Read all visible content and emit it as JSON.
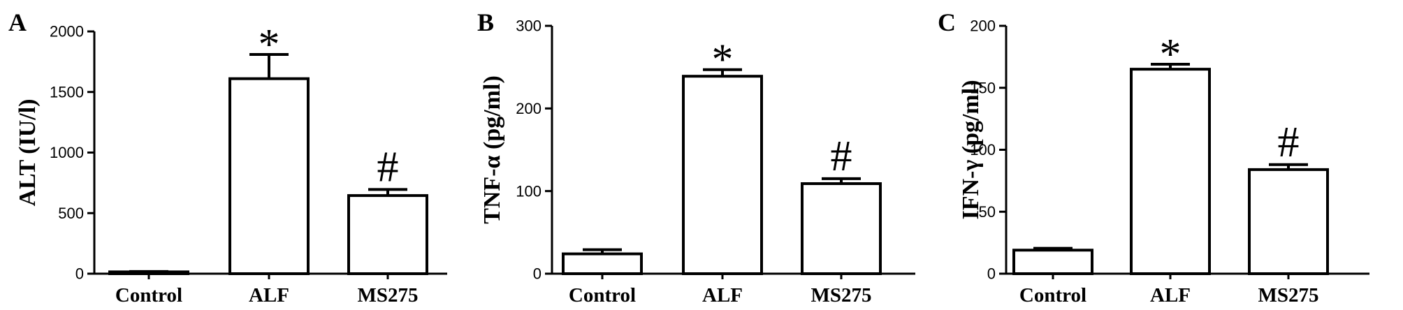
{
  "chart_data": [
    {
      "type": "bar",
      "panel": "A",
      "ylabel": "ALT (IU/l)",
      "ylim": [
        0,
        2000
      ],
      "yticks": [
        "0",
        "500",
        "1000",
        "1500",
        "2000"
      ],
      "categories": [
        "Control",
        "ALF",
        "MS275"
      ],
      "values": [
        15,
        1610,
        645
      ],
      "errors": [
        3,
        200,
        50
      ],
      "annotations": [
        "",
        "*",
        "#"
      ],
      "grid": false
    },
    {
      "type": "bar",
      "panel": "B",
      "ylabel": "TNF-α (pg/ml)",
      "ylim": [
        0,
        300
      ],
      "yticks": [
        "0",
        "100",
        "200",
        "300"
      ],
      "categories": [
        "Control",
        "ALF",
        "MS275"
      ],
      "values": [
        24,
        239,
        109
      ],
      "errors": [
        5,
        8,
        6
      ],
      "annotations": [
        "",
        "*",
        "#"
      ],
      "grid": false
    },
    {
      "type": "bar",
      "panel": "C",
      "ylabel": "IFN-γ (pg/ml)",
      "ylim": [
        0,
        200
      ],
      "yticks": [
        "0",
        "50",
        "100",
        "150",
        "200"
      ],
      "categories": [
        "Control",
        "ALF",
        "MS275"
      ],
      "values": [
        19,
        165,
        84
      ],
      "errors": [
        1.5,
        4,
        4
      ],
      "annotations": [
        "",
        "*",
        "#"
      ],
      "grid": false
    }
  ]
}
